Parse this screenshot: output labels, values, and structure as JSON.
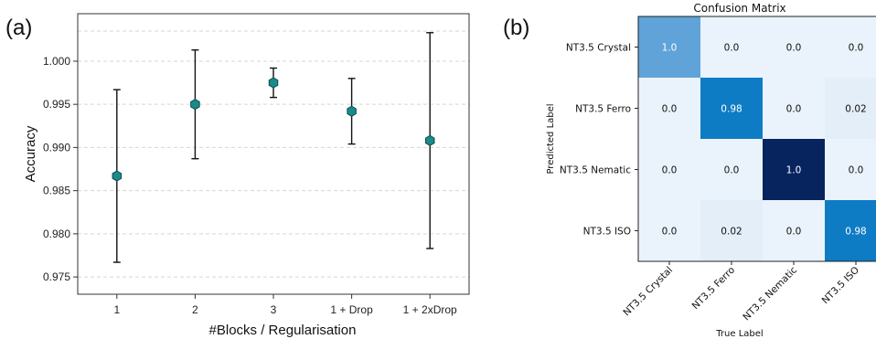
{
  "panels": {
    "a_label": "(a)",
    "b_label": "(b)"
  },
  "chart_data": [
    {
      "type": "scatter",
      "error_bars": true,
      "categories": [
        "1",
        "2",
        "3",
        "1 + Drop",
        "1 + 2xDrop"
      ],
      "values": [
        0.9867,
        0.995,
        0.9975,
        0.9942,
        0.9908
      ],
      "err_low": [
        0.9767,
        0.9887,
        0.9958,
        0.9904,
        0.9783
      ],
      "err_high": [
        0.9967,
        1.0013,
        0.9992,
        0.998,
        1.0033
      ],
      "ylabel": "Accuracy",
      "xlabel": "#Blocks / Regularisation",
      "yticks": [
        0.975,
        0.98,
        0.985,
        0.99,
        0.995,
        1.0
      ],
      "ytick_labels": [
        "0.975",
        "0.980",
        "0.985",
        "0.990",
        "0.995",
        "1.000"
      ],
      "ylim": [
        0.973,
        1.0055
      ],
      "marker_color": "#1b8a8a",
      "grid": "dashed-horizontal"
    },
    {
      "type": "heatmap",
      "title": "Confusion Matrix",
      "row_labels": [
        "NT3.5 Crystal",
        "NT3.5 Ferro",
        "NT3.5 Nematic",
        "NT3.5 ISO"
      ],
      "col_labels": [
        "NT3.5 Crystal",
        "NT3.5 Ferro",
        "NT3.5 Nematic",
        "NT3.5 ISO"
      ],
      "matrix": [
        [
          1.0,
          0.0,
          0.0,
          0.0
        ],
        [
          0.0,
          0.98,
          0.0,
          0.02
        ],
        [
          0.0,
          0.0,
          1.0,
          0.0
        ],
        [
          0.0,
          0.02,
          0.0,
          0.98
        ]
      ],
      "cell_text": [
        [
          "1.0",
          "0.0",
          "0.0",
          "0.0"
        ],
        [
          "0.0",
          "0.98",
          "0.0",
          "0.02"
        ],
        [
          "0.0",
          "0.0",
          "1.0",
          "0.0"
        ],
        [
          "0.0",
          "0.02",
          "0.0",
          "0.98"
        ]
      ],
      "cell_colors": [
        [
          "#5fa3d8",
          "#eaf3fb",
          "#eaf3fb",
          "#eaf3fb"
        ],
        [
          "#eaf3fb",
          "#0e7cc4",
          "#eaf3fb",
          "#e3eef9"
        ],
        [
          "#eaf3fb",
          "#eaf3fb",
          "#08245f",
          "#eaf3fb"
        ],
        [
          "#eaf3fb",
          "#e3eef9",
          "#eaf3fb",
          "#0e7cc4"
        ]
      ],
      "ylabel": "Predicted Label",
      "xlabel": "True Label"
    }
  ]
}
